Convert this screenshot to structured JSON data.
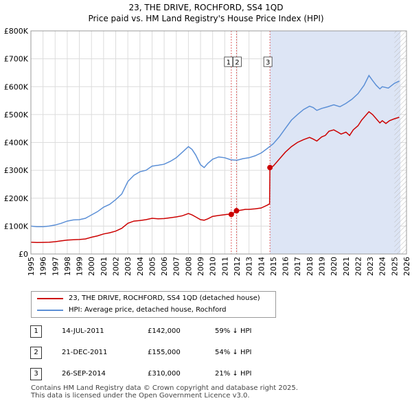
{
  "title": "23, THE DRIVE, ROCHFORD, SS4 1QD",
  "subtitle": "Price paid vs. HM Land Registry's House Price Index (HPI)",
  "chart_data": {
    "type": "line",
    "title": "23, THE DRIVE, ROCHFORD, SS4 1QD",
    "subtitle": "Price paid vs. HM Land Registry's House Price Index (HPI)",
    "xlim": [
      1995,
      2026
    ],
    "ylim": [
      0,
      800000
    ],
    "x_ticks": [
      1995,
      1996,
      1997,
      1998,
      1999,
      2000,
      2001,
      2002,
      2003,
      2004,
      2005,
      2006,
      2007,
      2008,
      2009,
      2010,
      2011,
      2012,
      2013,
      2014,
      2015,
      2016,
      2017,
      2018,
      2019,
      2020,
      2021,
      2022,
      2023,
      2024,
      2025,
      2026
    ],
    "y_ticks": [
      {
        "value": 0,
        "label": "£0"
      },
      {
        "value": 100000,
        "label": "£100K"
      },
      {
        "value": 200000,
        "label": "£200K"
      },
      {
        "value": 300000,
        "label": "£300K"
      },
      {
        "value": 400000,
        "label": "£400K"
      },
      {
        "value": 500000,
        "label": "£500K"
      },
      {
        "value": 600000,
        "label": "£600K"
      },
      {
        "value": 700000,
        "label": "£700K"
      },
      {
        "value": 800000,
        "label": "£800K"
      }
    ],
    "grid": true,
    "shaded_region": {
      "from": 2014.73,
      "to": 2025.5,
      "color": "#dde5f5"
    },
    "hatched_region": {
      "from": 2025.0,
      "to": 2026
    },
    "series": [
      {
        "name": "23, THE DRIVE, ROCHFORD, SS4 1QD (detached house)",
        "color": "#cc0000",
        "points": [
          [
            1995.0,
            42000
          ],
          [
            1995.5,
            41000
          ],
          [
            1996.0,
            41500
          ],
          [
            1996.5,
            42000
          ],
          [
            1997.0,
            44000
          ],
          [
            1997.5,
            47000
          ],
          [
            1998.0,
            50000
          ],
          [
            1998.5,
            51000
          ],
          [
            1999.0,
            52000
          ],
          [
            1999.5,
            54000
          ],
          [
            2000.0,
            60000
          ],
          [
            2000.5,
            65000
          ],
          [
            2001.0,
            72000
          ],
          [
            2001.5,
            76000
          ],
          [
            2002.0,
            82000
          ],
          [
            2002.5,
            92000
          ],
          [
            2003.0,
            110000
          ],
          [
            2003.5,
            118000
          ],
          [
            2004.0,
            120000
          ],
          [
            2004.5,
            123000
          ],
          [
            2005.0,
            128000
          ],
          [
            2005.5,
            126000
          ],
          [
            2006.0,
            127000
          ],
          [
            2006.5,
            130000
          ],
          [
            2007.0,
            133000
          ],
          [
            2007.5,
            137000
          ],
          [
            2008.0,
            145000
          ],
          [
            2008.3,
            140000
          ],
          [
            2008.6,
            133000
          ],
          [
            2009.0,
            123000
          ],
          [
            2009.3,
            121000
          ],
          [
            2009.6,
            126000
          ],
          [
            2010.0,
            135000
          ],
          [
            2010.5,
            138000
          ],
          [
            2011.0,
            141000
          ],
          [
            2011.2,
            142000
          ],
          [
            2011.54,
            142000
          ],
          [
            2011.75,
            148000
          ],
          [
            2011.97,
            155000
          ],
          [
            2012.3,
            157000
          ],
          [
            2012.7,
            160000
          ],
          [
            2013.0,
            160000
          ],
          [
            2013.5,
            162000
          ],
          [
            2014.0,
            165000
          ],
          [
            2014.5,
            175000
          ],
          [
            2014.7,
            180000
          ],
          [
            2014.73,
            310000
          ],
          [
            2015.0,
            315000
          ],
          [
            2015.5,
            340000
          ],
          [
            2016.0,
            365000
          ],
          [
            2016.5,
            385000
          ],
          [
            2017.0,
            400000
          ],
          [
            2017.5,
            410000
          ],
          [
            2018.0,
            418000
          ],
          [
            2018.3,
            412000
          ],
          [
            2018.6,
            405000
          ],
          [
            2019.0,
            420000
          ],
          [
            2019.3,
            425000
          ],
          [
            2019.6,
            440000
          ],
          [
            2020.0,
            445000
          ],
          [
            2020.3,
            438000
          ],
          [
            2020.6,
            430000
          ],
          [
            2021.0,
            437000
          ],
          [
            2021.3,
            425000
          ],
          [
            2021.6,
            445000
          ],
          [
            2022.0,
            460000
          ],
          [
            2022.3,
            480000
          ],
          [
            2022.6,
            495000
          ],
          [
            2022.9,
            510000
          ],
          [
            2023.2,
            500000
          ],
          [
            2023.5,
            485000
          ],
          [
            2023.8,
            470000
          ],
          [
            2024.0,
            478000
          ],
          [
            2024.3,
            468000
          ],
          [
            2024.6,
            478000
          ],
          [
            2025.0,
            485000
          ],
          [
            2025.4,
            490000
          ]
        ]
      },
      {
        "name": "HPI: Average price, detached house, Rochford",
        "color": "#5b8fd6",
        "points": [
          [
            1995.0,
            100000
          ],
          [
            1995.5,
            98000
          ],
          [
            1996.0,
            98000
          ],
          [
            1996.5,
            100000
          ],
          [
            1997.0,
            104000
          ],
          [
            1997.5,
            110000
          ],
          [
            1998.0,
            118000
          ],
          [
            1998.5,
            122000
          ],
          [
            1999.0,
            123000
          ],
          [
            1999.5,
            128000
          ],
          [
            2000.0,
            140000
          ],
          [
            2000.5,
            152000
          ],
          [
            2001.0,
            168000
          ],
          [
            2001.5,
            178000
          ],
          [
            2002.0,
            195000
          ],
          [
            2002.5,
            215000
          ],
          [
            2003.0,
            260000
          ],
          [
            2003.5,
            282000
          ],
          [
            2004.0,
            295000
          ],
          [
            2004.5,
            300000
          ],
          [
            2005.0,
            315000
          ],
          [
            2005.5,
            318000
          ],
          [
            2006.0,
            322000
          ],
          [
            2006.5,
            332000
          ],
          [
            2007.0,
            345000
          ],
          [
            2007.5,
            365000
          ],
          [
            2008.0,
            385000
          ],
          [
            2008.3,
            375000
          ],
          [
            2008.6,
            355000
          ],
          [
            2009.0,
            320000
          ],
          [
            2009.3,
            310000
          ],
          [
            2009.6,
            325000
          ],
          [
            2010.0,
            340000
          ],
          [
            2010.5,
            348000
          ],
          [
            2011.0,
            345000
          ],
          [
            2011.5,
            338000
          ],
          [
            2012.0,
            336000
          ],
          [
            2012.5,
            342000
          ],
          [
            2013.0,
            345000
          ],
          [
            2013.5,
            352000
          ],
          [
            2014.0,
            362000
          ],
          [
            2014.5,
            378000
          ],
          [
            2015.0,
            395000
          ],
          [
            2015.5,
            420000
          ],
          [
            2016.0,
            450000
          ],
          [
            2016.5,
            480000
          ],
          [
            2017.0,
            500000
          ],
          [
            2017.5,
            518000
          ],
          [
            2018.0,
            530000
          ],
          [
            2018.3,
            525000
          ],
          [
            2018.6,
            515000
          ],
          [
            2019.0,
            522000
          ],
          [
            2019.5,
            528000
          ],
          [
            2020.0,
            535000
          ],
          [
            2020.5,
            528000
          ],
          [
            2021.0,
            540000
          ],
          [
            2021.5,
            555000
          ],
          [
            2022.0,
            575000
          ],
          [
            2022.5,
            605000
          ],
          [
            2022.9,
            640000
          ],
          [
            2023.2,
            622000
          ],
          [
            2023.5,
            605000
          ],
          [
            2023.8,
            592000
          ],
          [
            2024.0,
            600000
          ],
          [
            2024.5,
            595000
          ],
          [
            2025.0,
            612000
          ],
          [
            2025.4,
            620000
          ]
        ]
      }
    ],
    "markers": [
      {
        "id": "1",
        "x": 2011.54,
        "y": 142000
      },
      {
        "id": "2",
        "x": 2011.97,
        "y": 155000
      },
      {
        "id": "3",
        "x": 2014.73,
        "y": 310000
      }
    ]
  },
  "legend": [
    {
      "label": "23, THE DRIVE, ROCHFORD, SS4 1QD (detached house)",
      "color": "#cc0000"
    },
    {
      "label": "HPI: Average price, detached house, Rochford",
      "color": "#5b8fd6"
    }
  ],
  "transactions": [
    {
      "num": "1",
      "date": "14-JUL-2011",
      "price": "£142,000",
      "hpi": "59% ↓ HPI"
    },
    {
      "num": "2",
      "date": "21-DEC-2011",
      "price": "£155,000",
      "hpi": "54% ↓ HPI"
    },
    {
      "num": "3",
      "date": "26-SEP-2014",
      "price": "£310,000",
      "hpi": "21% ↓ HPI"
    }
  ],
  "footer": {
    "line1": "Contains HM Land Registry data © Crown copyright and database right 2025.",
    "line2": "This data is licensed under the Open Government Licence v3.0."
  }
}
